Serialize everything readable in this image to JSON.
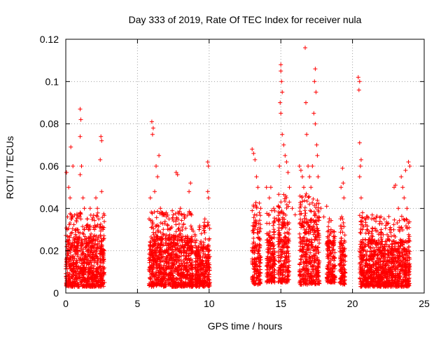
{
  "chart_data": {
    "type": "scatter",
    "title": "Day 333 of 2019, Rate Of TEC Index for receiver nula",
    "xlabel": "GPS time / hours",
    "ylabel": "ROTI / TECUs",
    "xlim": [
      0,
      25
    ],
    "ylim": [
      0,
      0.12
    ],
    "x_ticks": [
      0,
      5,
      10,
      15,
      20,
      25
    ],
    "x_tick_labels": [
      "0",
      "5",
      "10",
      "15",
      "20",
      "25"
    ],
    "y_ticks": [
      0,
      0.02,
      0.04,
      0.06,
      0.08,
      0.1,
      0.12
    ],
    "y_tick_labels": [
      "0",
      "0.02",
      "0.04",
      "0.06",
      "0.08",
      "0.1",
      "0.12"
    ],
    "grid": true,
    "legend": "none",
    "marker": "plus",
    "color": "#ff0000",
    "series": [
      {
        "points": [
          [
            0.05,
            0.057
          ],
          [
            0.1,
            0.03
          ],
          [
            0.2,
            0.05
          ],
          [
            0.3,
            0.045
          ],
          [
            0.4,
            0.035
          ],
          [
            0.5,
            0.06
          ],
          [
            0.35,
            0.069
          ],
          [
            0.6,
            0.025
          ],
          [
            0.7,
            0.02
          ],
          [
            0.8,
            0.03
          ],
          [
            0.9,
            0.025
          ],
          [
            1.0,
            0.087
          ],
          [
            1.05,
            0.082
          ],
          [
            1.0,
            0.074
          ],
          [
            1.1,
            0.06
          ],
          [
            1.0,
            0.056
          ],
          [
            1.2,
            0.045
          ],
          [
            1.3,
            0.04
          ],
          [
            1.5,
            0.035
          ],
          [
            1.6,
            0.03
          ],
          [
            1.7,
            0.04
          ],
          [
            1.8,
            0.025
          ],
          [
            2.0,
            0.03
          ],
          [
            2.1,
            0.045
          ],
          [
            2.2,
            0.04
          ],
          [
            2.3,
            0.035
          ],
          [
            2.45,
            0.074
          ],
          [
            2.5,
            0.072
          ],
          [
            2.4,
            0.063
          ],
          [
            2.5,
            0.048
          ],
          [
            2.6,
            0.03
          ],
          [
            2.65,
            0.015
          ],
          [
            6.0,
            0.081
          ],
          [
            6.1,
            0.078
          ],
          [
            6.05,
            0.075
          ],
          [
            6.3,
            0.06
          ],
          [
            6.5,
            0.065
          ],
          [
            6.4,
            0.055
          ],
          [
            6.2,
            0.048
          ],
          [
            5.9,
            0.045
          ],
          [
            6.6,
            0.04
          ],
          [
            6.8,
            0.037
          ],
          [
            7.0,
            0.038
          ],
          [
            7.2,
            0.035
          ],
          [
            7.5,
            0.037
          ],
          [
            7.7,
            0.057
          ],
          [
            7.8,
            0.056
          ],
          [
            8.0,
            0.04
          ],
          [
            8.3,
            0.036
          ],
          [
            8.6,
            0.048
          ],
          [
            8.7,
            0.052
          ],
          [
            8.8,
            0.03
          ],
          [
            9.0,
            0.025
          ],
          [
            9.3,
            0.03
          ],
          [
            9.5,
            0.02
          ],
          [
            9.7,
            0.035
          ],
          [
            9.9,
            0.062
          ],
          [
            9.95,
            0.06
          ],
          [
            9.9,
            0.048
          ],
          [
            9.95,
            0.045
          ],
          [
            10.0,
            0.02
          ],
          [
            13.0,
            0.068
          ],
          [
            13.1,
            0.066
          ],
          [
            13.2,
            0.063
          ],
          [
            13.3,
            0.055
          ],
          [
            13.4,
            0.05
          ],
          [
            13.6,
            0.04
          ],
          [
            14.0,
            0.05
          ],
          [
            14.2,
            0.045
          ],
          [
            14.3,
            0.05
          ],
          [
            14.5,
            0.04
          ],
          [
            14.7,
            0.035
          ],
          [
            14.9,
            0.06
          ],
          [
            15.0,
            0.108
          ],
          [
            15.0,
            0.105
          ],
          [
            15.05,
            0.1
          ],
          [
            15.1,
            0.095
          ],
          [
            14.95,
            0.09
          ],
          [
            15.0,
            0.085
          ],
          [
            15.1,
            0.075
          ],
          [
            15.2,
            0.07
          ],
          [
            15.3,
            0.065
          ],
          [
            15.4,
            0.062
          ],
          [
            15.5,
            0.057
          ],
          [
            15.6,
            0.05
          ],
          [
            15.8,
            0.04
          ],
          [
            16.0,
            0.037
          ],
          [
            16.3,
            0.06
          ],
          [
            16.4,
            0.058
          ],
          [
            16.5,
            0.055
          ],
          [
            16.6,
            0.05
          ],
          [
            16.7,
            0.116
          ],
          [
            16.75,
            0.09
          ],
          [
            16.8,
            0.075
          ],
          [
            16.9,
            0.06
          ],
          [
            17.0,
            0.055
          ],
          [
            17.1,
            0.05
          ],
          [
            17.2,
            0.06
          ],
          [
            17.3,
            0.085
          ],
          [
            17.4,
            0.106
          ],
          [
            17.35,
            0.1
          ],
          [
            17.45,
            0.095
          ],
          [
            17.4,
            0.08
          ],
          [
            17.5,
            0.07
          ],
          [
            17.55,
            0.065
          ],
          [
            17.6,
            0.055
          ],
          [
            17.8,
            0.04
          ],
          [
            18.0,
            0.036
          ],
          [
            18.2,
            0.041
          ],
          [
            18.5,
            0.03
          ],
          [
            18.7,
            0.025
          ],
          [
            19.2,
            0.05
          ],
          [
            19.3,
            0.059
          ],
          [
            19.35,
            0.052
          ],
          [
            19.4,
            0.045
          ],
          [
            19.3,
            0.035
          ],
          [
            20.4,
            0.102
          ],
          [
            20.5,
            0.1
          ],
          [
            20.45,
            0.096
          ],
          [
            20.5,
            0.071
          ],
          [
            20.6,
            0.063
          ],
          [
            20.55,
            0.06
          ],
          [
            20.5,
            0.055
          ],
          [
            20.6,
            0.045
          ],
          [
            20.7,
            0.038
          ],
          [
            21.0,
            0.03
          ],
          [
            21.2,
            0.025
          ],
          [
            21.5,
            0.035
          ],
          [
            21.8,
            0.025
          ],
          [
            22.0,
            0.03
          ],
          [
            22.2,
            0.035
          ],
          [
            22.5,
            0.033
          ],
          [
            22.7,
            0.03
          ],
          [
            22.9,
            0.05
          ],
          [
            23.0,
            0.051
          ],
          [
            23.2,
            0.04
          ],
          [
            23.4,
            0.055
          ],
          [
            23.5,
            0.05
          ],
          [
            23.6,
            0.045
          ],
          [
            23.7,
            0.058
          ],
          [
            23.9,
            0.062
          ],
          [
            24.0,
            0.06
          ],
          [
            23.8,
            0.04
          ],
          [
            23.9,
            0.02
          ]
        ]
      }
    ],
    "dense_bands": [
      {
        "x": [
          0.0,
          2.7
        ],
        "y": [
          0.003,
          0.027
        ]
      },
      {
        "x": [
          5.8,
          8.9
        ],
        "y": [
          0.003,
          0.027
        ]
      },
      {
        "x": [
          9.0,
          10.05
        ],
        "y": [
          0.003,
          0.022
        ]
      },
      {
        "x": [
          13.0,
          13.6
        ],
        "y": [
          0.004,
          0.033
        ]
      },
      {
        "x": [
          14.0,
          14.6
        ],
        "y": [
          0.005,
          0.028
        ]
      },
      {
        "x": [
          14.8,
          15.6
        ],
        "y": [
          0.005,
          0.035
        ]
      },
      {
        "x": [
          16.3,
          17.7
        ],
        "y": [
          0.004,
          0.035
        ]
      },
      {
        "x": [
          18.2,
          18.8
        ],
        "y": [
          0.005,
          0.025
        ]
      },
      {
        "x": [
          19.1,
          19.5
        ],
        "y": [
          0.004,
          0.025
        ]
      },
      {
        "x": [
          20.5,
          24.0
        ],
        "y": [
          0.003,
          0.025
        ]
      }
    ]
  }
}
